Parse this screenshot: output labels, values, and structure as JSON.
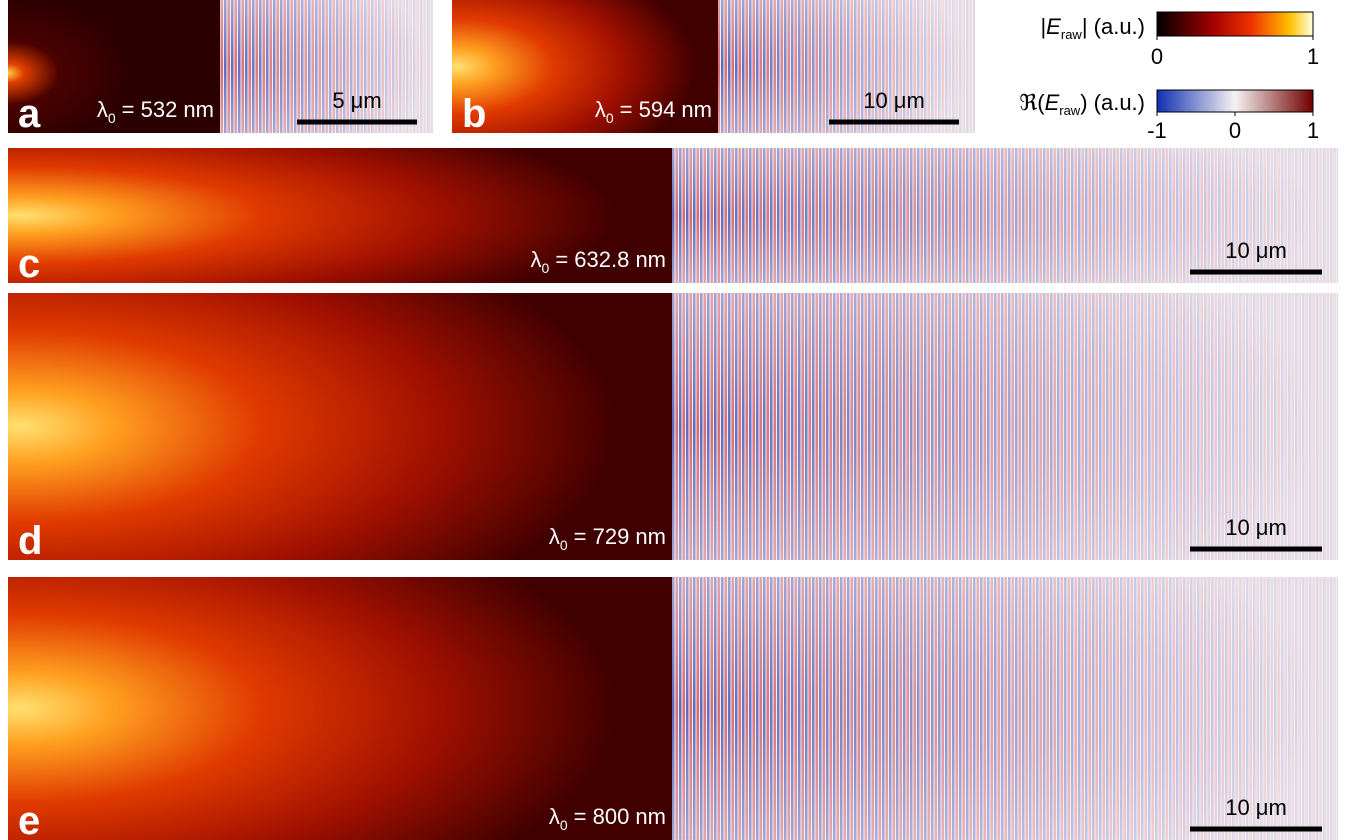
{
  "panels": [
    {
      "label": "a",
      "wavelength": {
        "symbol": "λ",
        "sub": "0",
        "text": "= 532 nm"
      },
      "scale_bar": "5 μm"
    },
    {
      "label": "b",
      "wavelength": {
        "symbol": "λ",
        "sub": "0",
        "text": "= 594 nm"
      },
      "scale_bar": "10 μm"
    },
    {
      "label": "c",
      "wavelength": {
        "symbol": "λ",
        "sub": "0",
        "text": "= 632.8 nm"
      },
      "scale_bar": "10 μm"
    },
    {
      "label": "d",
      "wavelength": {
        "symbol": "λ",
        "sub": "0",
        "text": "= 729 nm"
      },
      "scale_bar": "10 μm"
    },
    {
      "label": "e",
      "wavelength": {
        "symbol": "λ",
        "sub": "0",
        "text": "= 800 nm"
      },
      "scale_bar": "10 μm"
    }
  ],
  "colorbars": [
    {
      "label": {
        "pre": "|",
        "italic": "E",
        "sub": "raw",
        "post": "| (a.u.)"
      },
      "ticks": [
        0,
        1
      ]
    },
    {
      "label": {
        "pre": "ℜ(",
        "italic": "E",
        "sub": "raw",
        "post": ") (a.u.)"
      },
      "ticks": [
        -1,
        0,
        1
      ]
    }
  ]
}
